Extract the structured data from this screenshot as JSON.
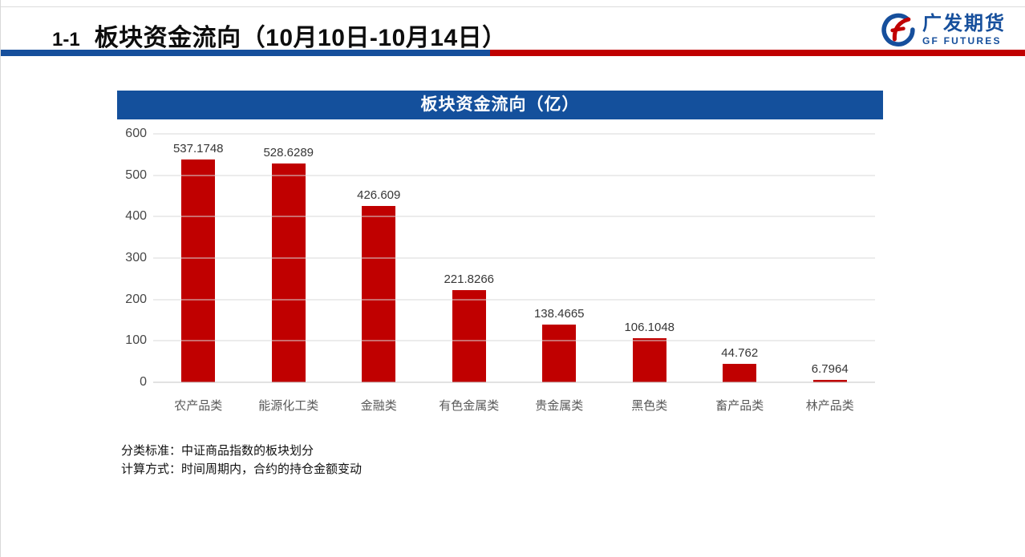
{
  "header": {
    "number": "1-1",
    "title": "板块资金流向（10月10日-10月14日）"
  },
  "logo": {
    "name_cn": "广发期货",
    "name_en": "GF FUTURES"
  },
  "colors": {
    "brand_blue": "#164F9C",
    "brand_red": "#C00000",
    "bar_red": "#C00000",
    "gridline": "#D9D9D9",
    "axis_text": "#474747",
    "category_text": "#595959"
  },
  "chart_data": {
    "type": "bar",
    "title": "板块资金流向（亿）",
    "categories": [
      "农产品类",
      "能源化工类",
      "金融类",
      "有色金属类",
      "贵金属类",
      "黑色类",
      "畜产品类",
      "林产品类"
    ],
    "values": [
      537.1748,
      528.6289,
      426.609,
      221.8266,
      138.4665,
      106.1048,
      44.762,
      6.7964
    ],
    "value_labels": [
      "537.1748",
      "528.6289",
      "426.609",
      "221.8266",
      "138.4665",
      "106.1048",
      "44.762",
      "6.7964"
    ],
    "xlabel": "",
    "ylabel": "",
    "ylim": [
      0,
      600
    ],
    "yticks": [
      0,
      100,
      200,
      300,
      400,
      500,
      600
    ],
    "grid": true,
    "legend": false,
    "bar_color": "#C00000"
  },
  "notes": {
    "line1": "分类标准：中证商品指数的板块划分",
    "line2": "计算方式：时间周期内，合约的持仓金额变动"
  }
}
